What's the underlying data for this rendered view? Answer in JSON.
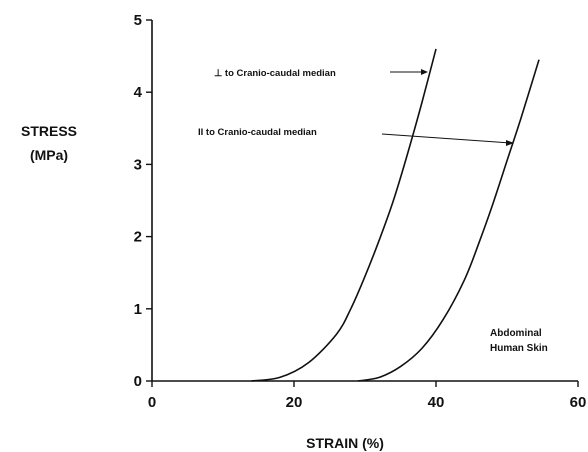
{
  "chart_data": {
    "type": "line",
    "xlabel": "STRAIN (%)",
    "ylabel_line1": "STRESS",
    "ylabel_line2": "(MPa)",
    "xlim": [
      0,
      60
    ],
    "ylim": [
      0,
      5
    ],
    "x_ticks": [
      0,
      20,
      40,
      60
    ],
    "x_tick_labels": [
      "0",
      "20",
      "40",
      "60"
    ],
    "y_ticks": [
      0,
      1,
      2,
      3,
      4,
      5
    ],
    "y_tick_labels": [
      "0",
      "1",
      "2",
      "3",
      "4",
      "5"
    ],
    "grid": false,
    "series": [
      {
        "name": "⊥ to Cranio-caudal median",
        "x": [
          14,
          18,
          22,
          26,
          28,
          30,
          32,
          34,
          36,
          38,
          40
        ],
        "y": [
          0,
          0.05,
          0.25,
          0.65,
          1.0,
          1.45,
          1.95,
          2.5,
          3.15,
          3.85,
          4.6
        ]
      },
      {
        "name": "II to Cranio-caudal median",
        "x": [
          29,
          32,
          35,
          38,
          41,
          44,
          46,
          48,
          50,
          52,
          54.5
        ],
        "y": [
          0,
          0.05,
          0.2,
          0.45,
          0.85,
          1.4,
          1.9,
          2.45,
          3.05,
          3.65,
          4.45
        ]
      }
    ],
    "annotations": [
      {
        "text": "⊥ to Cranio-caudal median"
      },
      {
        "text": "II to Cranio-caudal median"
      }
    ],
    "inset_label_line1": "Abdominal",
    "inset_label_line2": "Human Skin"
  }
}
